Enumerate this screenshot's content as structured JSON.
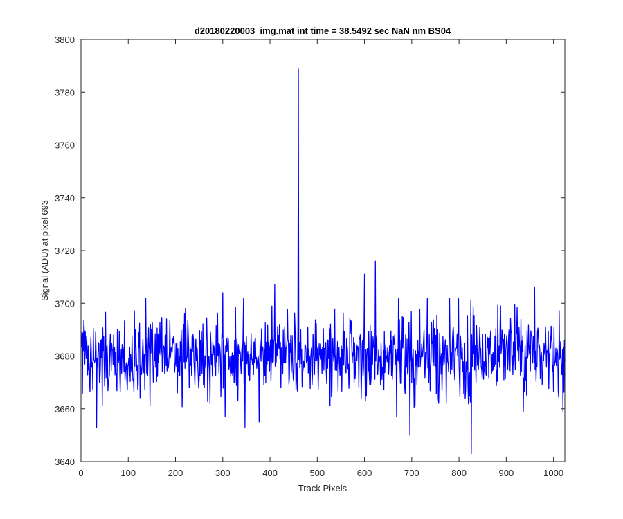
{
  "chart_data": {
    "type": "line",
    "title": "d20180220003_img.mat int time = 38.5492 sec  NaN nm BS04",
    "xlabel": "Track Pixels",
    "ylabel": "Signal (ADU) at pixel 693",
    "xlim": [
      0,
      1024
    ],
    "ylim": [
      3640,
      3800
    ],
    "xticks": [
      0,
      100,
      200,
      300,
      400,
      500,
      600,
      700,
      800,
      900,
      1000
    ],
    "yticks": [
      3640,
      3660,
      3680,
      3700,
      3720,
      3740,
      3760,
      3780,
      3800
    ],
    "grid": false,
    "box": true,
    "line_color": "#0000ff",
    "series": [
      {
        "x_start": 1,
        "x_step": 1,
        "baseline": 3680,
        "noise_sigma": 7.5,
        "points_count": 1024,
        "notable_points": [
          {
            "x": 460,
            "y": 3789
          },
          {
            "x": 826,
            "y": 3643
          },
          {
            "x": 623,
            "y": 3716
          },
          {
            "x": 600,
            "y": 3711
          },
          {
            "x": 410,
            "y": 3707
          },
          {
            "x": 300,
            "y": 3704
          },
          {
            "x": 960,
            "y": 3706
          },
          {
            "x": 347,
            "y": 3653
          },
          {
            "x": 377,
            "y": 3655
          },
          {
            "x": 696,
            "y": 3650
          },
          {
            "x": 33,
            "y": 3653
          },
          {
            "x": 1020,
            "y": 3659
          }
        ]
      }
    ]
  }
}
